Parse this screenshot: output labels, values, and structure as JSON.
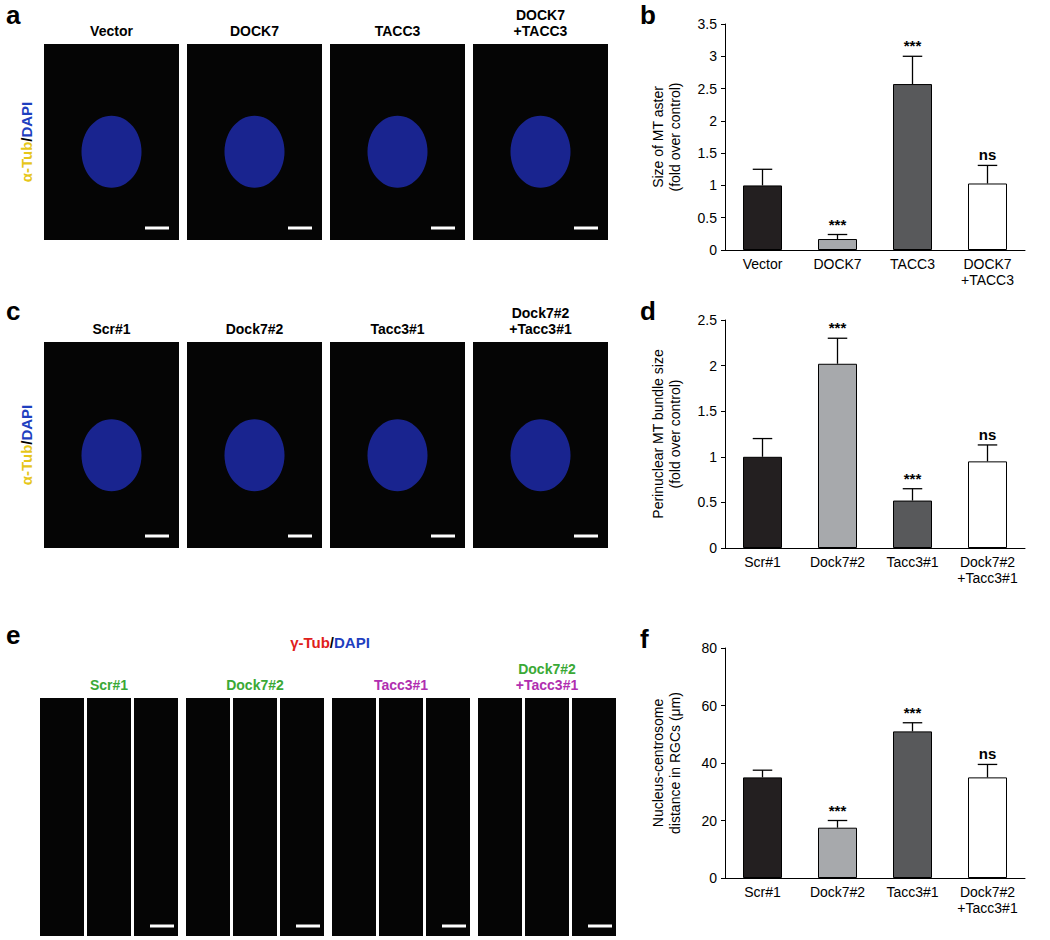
{
  "chart_data": [
    {
      "type": "bar",
      "panel": "b",
      "y_label": "Size of MT aster\n(fold over control)",
      "categories": [
        "Vector",
        "DOCK7",
        "TACC3",
        "DOCK7\n+TACC3"
      ],
      "values": [
        1.0,
        0.17,
        2.57,
        1.03
      ],
      "errors": [
        0.25,
        0.07,
        0.43,
        0.28
      ],
      "annotations": [
        null,
        "***",
        "***",
        "ns"
      ],
      "colors": [
        "#231f20",
        "#a7a9ac",
        "#58595b",
        "#ffffff"
      ],
      "ylim": [
        0,
        3.5
      ],
      "yticks": [
        0,
        0.5,
        1,
        1.5,
        2,
        2.5,
        3,
        3.5
      ],
      "grid": false
    },
    {
      "type": "bar",
      "panel": "d",
      "y_label": "Perinuclear MT bundle size\n(fold over control)",
      "categories": [
        "Scr#1",
        "Dock7#2",
        "Tacc3#1",
        "Dock7#2\n+Tacc3#1"
      ],
      "values": [
        1.0,
        2.02,
        0.52,
        0.95
      ],
      "errors": [
        0.2,
        0.28,
        0.13,
        0.18
      ],
      "annotations": [
        null,
        "***",
        "***",
        "ns"
      ],
      "colors": [
        "#231f20",
        "#a7a9ac",
        "#58595b",
        "#ffffff"
      ],
      "ylim": [
        0,
        2.5
      ],
      "yticks": [
        0,
        0.5,
        1,
        1.5,
        2,
        2.5
      ],
      "grid": false
    },
    {
      "type": "bar",
      "panel": "f",
      "y_label": "Nucleus-centrosome\ndistance in RGCs (μm)",
      "categories": [
        "Scr#1",
        "Dock7#2",
        "Tacc3#1",
        "Dock7#2\n+Tacc3#1"
      ],
      "values": [
        35,
        17.5,
        51,
        35
      ],
      "errors": [
        2.5,
        2.5,
        3,
        4.5
      ],
      "annotations": [
        null,
        "***",
        "***",
        "ns"
      ],
      "colors": [
        "#231f20",
        "#a7a9ac",
        "#58595b",
        "#ffffff"
      ],
      "ylim": [
        0,
        80
      ],
      "yticks": [
        0,
        20,
        40,
        60,
        80
      ],
      "grid": false
    }
  ],
  "image_panels": [
    {
      "panel": "a",
      "stain": [
        {
          "text": "α-Tub",
          "color": "#e6c619"
        },
        {
          "text": "/",
          "color": "#000000"
        },
        {
          "text": "DAPI",
          "color": "#1f3fbf"
        }
      ],
      "labels": [
        [
          {
            "text": "Vector",
            "color": "#000000"
          }
        ],
        [
          {
            "text": "DOCK7",
            "color": "#000000"
          }
        ],
        [
          {
            "text": "TACC3",
            "color": "#000000"
          }
        ],
        [
          {
            "text": "DOCK7",
            "color": "#000000"
          },
          {
            "text": "+TACC3",
            "color": "#000000"
          }
        ]
      ]
    },
    {
      "panel": "c",
      "stain": [
        {
          "text": "α-Tub",
          "color": "#e6c619"
        },
        {
          "text": "/",
          "color": "#000000"
        },
        {
          "text": "DAPI",
          "color": "#1f3fbf"
        }
      ],
      "labels": [
        [
          {
            "text": "Scr#1",
            "color": "#000000"
          }
        ],
        [
          {
            "text": "Dock7#2",
            "color": "#000000"
          }
        ],
        [
          {
            "text": "Tacc3#1",
            "color": "#000000"
          }
        ],
        [
          {
            "text": "Dock7#2",
            "color": "#000000"
          },
          {
            "text": "+Tacc3#1",
            "color": "#000000"
          }
        ]
      ]
    },
    {
      "panel": "e",
      "stain": [
        {
          "text": "γ-Tub",
          "color": "#e0201b"
        },
        {
          "text": "/",
          "color": "#000000"
        },
        {
          "text": "DAPI",
          "color": "#1f3fbf"
        }
      ],
      "labels": [
        [
          {
            "text": "Scr#1",
            "color": "#3aa935"
          }
        ],
        [
          {
            "text": "Dock7#2",
            "color": "#3aa935"
          }
        ],
        [
          {
            "text": "Tacc3#1",
            "color": "#b02fb0"
          }
        ],
        [
          {
            "text": "Dock7#2",
            "color": "#3aa935"
          },
          {
            "text": "+Tacc3#1",
            "color": "#b02fb0"
          }
        ]
      ]
    }
  ]
}
